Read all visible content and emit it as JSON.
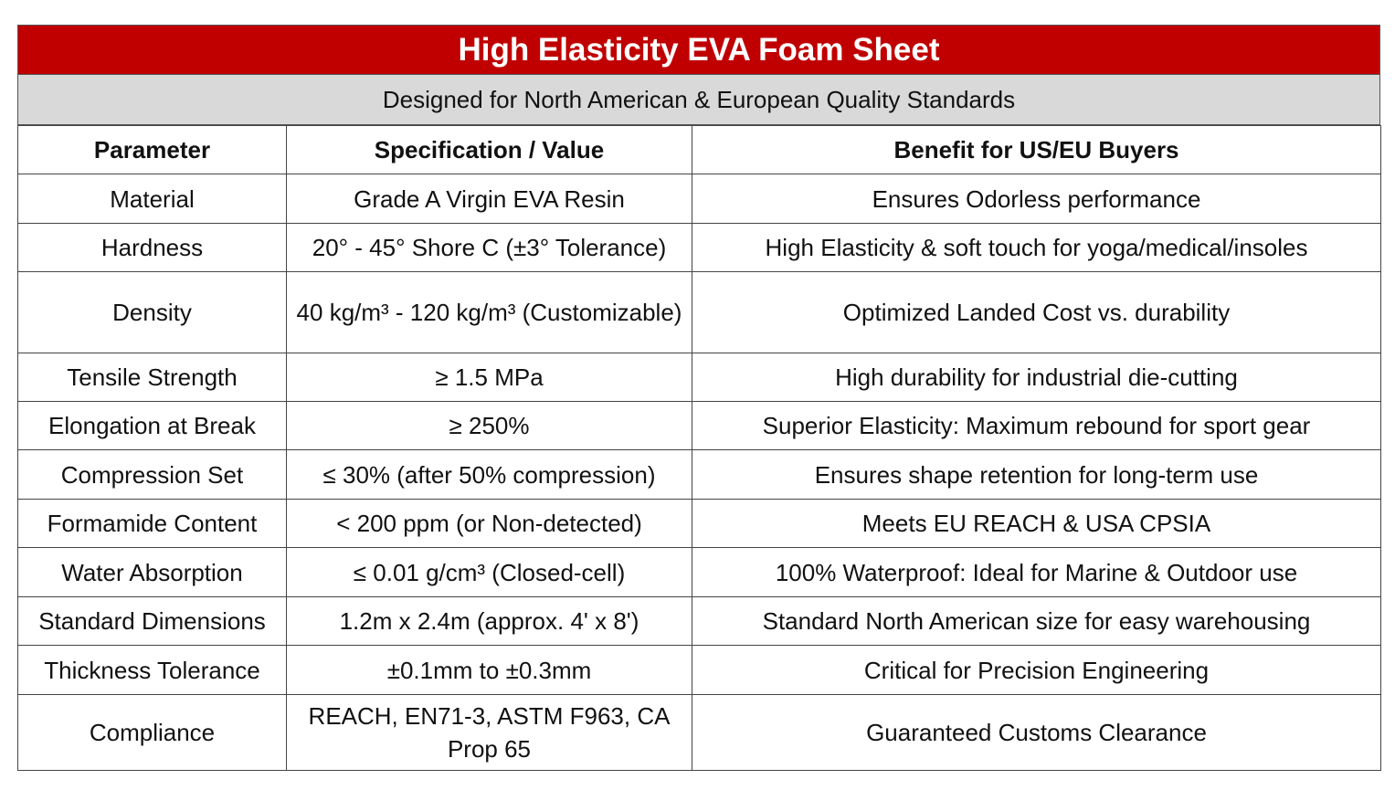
{
  "title": "High Elasticity EVA Foam Sheet",
  "subtitle": "Designed for North American & European Quality Standards",
  "table": {
    "header": [
      "Parameter",
      "Specification / Value",
      "Benefit for US/EU Buyers"
    ],
    "rows": [
      [
        "Material",
        "Grade A Virgin EVA Resin",
        "Ensures Odorless performance"
      ],
      [
        "Hardness",
        "20° - 45° Shore C (±3° Tolerance)",
        "High Elasticity & soft touch for yoga/medical/insoles"
      ],
      [
        "Density",
        "40 kg/m³ - 120 kg/m³ (Customizable)",
        "Optimized Landed Cost vs. durability"
      ],
      [
        "Tensile Strength",
        "≥ 1.5 MPa",
        "High durability for industrial die-cutting"
      ],
      [
        "Elongation at Break",
        "≥ 250%",
        "Superior Elasticity: Maximum rebound for sport gear"
      ],
      [
        "Compression Set",
        "≤ 30% (after 50% compression)",
        "Ensures shape retention for long-term use"
      ],
      [
        "Formamide Content",
        "< 200 ppm (or Non-detected)",
        "Meets EU REACH & USA CPSIA"
      ],
      [
        "Water Absorption",
        "≤ 0.01 g/cm³ (Closed-cell)",
        "100% Waterproof: Ideal for Marine & Outdoor use"
      ],
      [
        "Standard Dimensions",
        "1.2m x 2.4m (approx. 4' x 8')",
        "Standard North American size for easy warehousing"
      ],
      [
        "Thickness Tolerance",
        "±0.1mm to ±0.3mm",
        "Critical for Precision Engineering"
      ],
      [
        "Compliance",
        "REACH, EN71-3, ASTM F963, CA Prop 65",
        "Guaranteed Customs Clearance"
      ]
    ]
  }
}
